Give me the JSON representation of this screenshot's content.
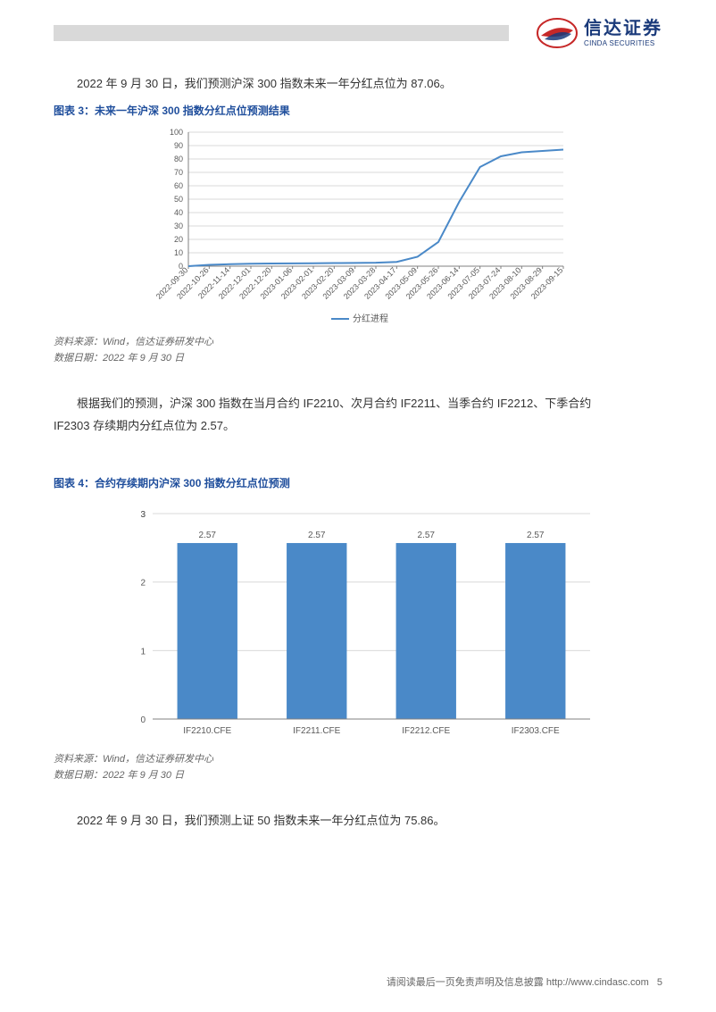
{
  "logo": {
    "cn": "信达证券",
    "en": "CINDA SECURITIES"
  },
  "para1": "2022 年 9 月 30 日，我们预测沪深 300 指数未来一年分红点位为 87.06。",
  "chart3": {
    "title": "图表 3：未来一年沪深 300 指数分红点位预测结果",
    "type": "line",
    "legend": "分红进程",
    "x_labels": [
      "2022-09-30",
      "2022-10-26",
      "2022-11-14",
      "2022-12-01",
      "2022-12-20",
      "2023-01-06",
      "2023-02-01",
      "2023-02-20",
      "2023-03-09",
      "2023-03-28",
      "2023-04-17",
      "2023-05-09",
      "2023-05-26",
      "2023-06-14",
      "2023-07-05",
      "2023-07-24",
      "2023-08-10",
      "2023-08-29",
      "2023-09-15"
    ],
    "y_ticks": [
      0,
      10,
      20,
      30,
      40,
      50,
      60,
      70,
      80,
      90,
      100
    ],
    "values": [
      0,
      1,
      1.5,
      1.8,
      2,
      2.1,
      2.2,
      2.3,
      2.4,
      2.6,
      3.2,
      7,
      18,
      48,
      74,
      82,
      85,
      86,
      87
    ],
    "line_color": "#4a89c8",
    "grid_color": "#d9d9d9",
    "axis_color": "#808080",
    "text_color": "#595959",
    "font_size": 9
  },
  "source1_a": "资料来源：Wind，信达证券研发中心",
  "source1_b": "数据日期：2022 年 9 月 30 日",
  "para2_a": "根据我们的预测，沪深 300 指数在当月合约 IF2210、次月合约 IF2211、当季合约 IF2212、下季合约",
  "para2_b": "IF2303 存续期内分红点位为 2.57。",
  "chart4": {
    "title": "图表 4：合约存续期内沪深 300 指数分红点位预测",
    "type": "bar",
    "categories": [
      "IF2210.CFE",
      "IF2211.CFE",
      "IF2212.CFE",
      "IF2303.CFE"
    ],
    "values": [
      2.57,
      2.57,
      2.57,
      2.57
    ],
    "value_labels": [
      "2.57",
      "2.57",
      "2.57",
      "2.57"
    ],
    "y_ticks": [
      0,
      1,
      2,
      3,
      3
    ],
    "y_tick_labels": [
      "0",
      "1",
      "2",
      "3",
      "3"
    ],
    "bar_color": "#4a89c8",
    "grid_color": "#d9d9d9",
    "axis_color": "#808080",
    "text_color": "#595959",
    "bar_width_ratio": 0.55,
    "font_size": 10
  },
  "source2_a": "资料来源：Wind，信达证券研发中心",
  "source2_b": "数据日期：2022 年 9 月 30 日",
  "para3": "2022 年 9 月 30 日，我们预测上证 50 指数未来一年分红点位为 75.86。",
  "footer": {
    "text": "请阅读最后一页免责声明及信息披露",
    "url": "http://www.cindasc.com",
    "page": "5"
  }
}
